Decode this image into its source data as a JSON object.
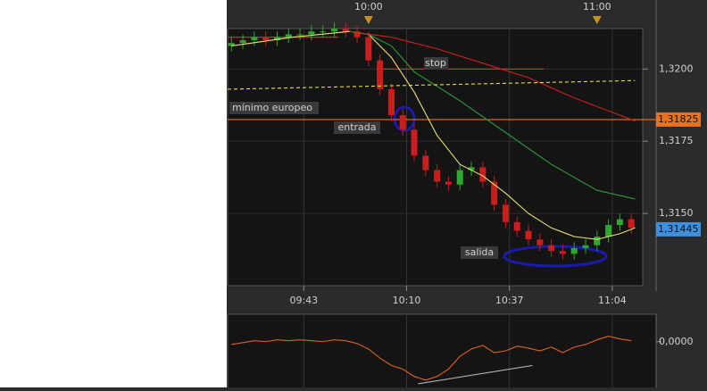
{
  "chart_data": {
    "type": "candlestick",
    "xlim": [
      "09:23",
      "11:12"
    ],
    "ylim": [
      1.3125,
      1.3214
    ],
    "xticks": [
      "09:43",
      "10:10",
      "10:37",
      "11:04"
    ],
    "top_xticks": [
      "10:00",
      "11:00"
    ],
    "yticks": [
      {
        "value": 1.32,
        "label": "1,3200"
      },
      {
        "value": 1.3175,
        "label": "1,3175"
      },
      {
        "value": 1.315,
        "label": "1,3150"
      }
    ],
    "grid": true,
    "up_color": "#2fa82f",
    "down_color": "#c81e1e",
    "x": [
      "09:24",
      "09:27",
      "09:30",
      "09:33",
      "09:36",
      "09:39",
      "09:42",
      "09:45",
      "09:48",
      "09:51",
      "09:54",
      "09:57",
      "10:00",
      "10:03",
      "10:06",
      "10:09",
      "10:12",
      "10:15",
      "10:18",
      "10:21",
      "10:24",
      "10:27",
      "10:30",
      "10:33",
      "10:36",
      "10:39",
      "10:42",
      "10:45",
      "10:48",
      "10:51",
      "10:54",
      "10:57",
      "11:00",
      "11:03",
      "11:06",
      "11:09"
    ],
    "open": [
      1.3208,
      1.3209,
      1.321,
      1.3211,
      1.321,
      1.3211,
      1.3212,
      1.3212,
      1.3213,
      1.3213,
      1.3214,
      1.3213,
      1.3211,
      1.3203,
      1.3193,
      1.3184,
      1.3179,
      1.317,
      1.3165,
      1.3161,
      1.316,
      1.3165,
      1.3166,
      1.3161,
      1.3153,
      1.3147,
      1.3144,
      1.3141,
      1.3139,
      1.3137,
      1.3136,
      1.3138,
      1.3139,
      1.3142,
      1.3146,
      1.3148
    ],
    "high": [
      1.3211,
      1.3212,
      1.3213,
      1.3213,
      1.3213,
      1.3214,
      1.3214,
      1.3215,
      1.3215,
      1.3216,
      1.3216,
      1.3215,
      1.3213,
      1.3205,
      1.3195,
      1.3186,
      1.3181,
      1.3172,
      1.3167,
      1.3163,
      1.3167,
      1.3168,
      1.3168,
      1.3163,
      1.3155,
      1.3149,
      1.3146,
      1.3143,
      1.3141,
      1.3139,
      1.314,
      1.3141,
      1.3144,
      1.3148,
      1.315,
      1.315
    ],
    "low": [
      1.3206,
      1.3207,
      1.3208,
      1.3208,
      1.3208,
      1.3209,
      1.321,
      1.321,
      1.3211,
      1.3211,
      1.3211,
      1.3209,
      1.3201,
      1.3191,
      1.3182,
      1.3177,
      1.3168,
      1.3163,
      1.3159,
      1.3158,
      1.3158,
      1.3163,
      1.3159,
      1.3151,
      1.3145,
      1.3142,
      1.3139,
      1.3137,
      1.3135,
      1.3134,
      1.3134,
      1.3136,
      1.3137,
      1.314,
      1.3144,
      1.3143
    ],
    "close": [
      1.3209,
      1.321,
      1.3211,
      1.321,
      1.3211,
      1.3212,
      1.3212,
      1.3213,
      1.3213,
      1.3214,
      1.3213,
      1.3211,
      1.3203,
      1.3193,
      1.3184,
      1.3179,
      1.317,
      1.3165,
      1.3161,
      1.316,
      1.3165,
      1.3166,
      1.3161,
      1.3153,
      1.3147,
      1.3144,
      1.3141,
      1.3139,
      1.3137,
      1.3136,
      1.3138,
      1.3139,
      1.3142,
      1.3146,
      1.3148,
      1.3145
    ],
    "lines": [
      {
        "color": "#e8e070",
        "dash": false,
        "x": [
          "09:24",
          "09:40",
          "09:55",
          "10:00",
          "10:06",
          "10:12",
          "10:18",
          "10:24",
          "10:30",
          "10:36",
          "10:42",
          "10:48",
          "10:54",
          "11:00",
          "11:06",
          "11:10"
        ],
        "values": [
          1.3208,
          1.3211,
          1.3213,
          1.3212,
          1.3204,
          1.3192,
          1.3177,
          1.3167,
          1.3163,
          1.3157,
          1.315,
          1.3145,
          1.3142,
          1.3141,
          1.3143,
          1.3145
        ]
      },
      {
        "color": "#2e9a3a",
        "dash": false,
        "x": [
          "09:55",
          "10:00",
          "10:06",
          "10:12",
          "10:24",
          "10:36",
          "10:48",
          "11:00",
          "11:10"
        ],
        "values": [
          1.3213,
          1.3212,
          1.3208,
          1.3199,
          1.3189,
          1.3178,
          1.3167,
          1.3158,
          1.3155
        ]
      },
      {
        "color": "#d02020",
        "dash": false,
        "x": [
          "09:55",
          "10:06",
          "10:18",
          "10:30",
          "10:42",
          "10:54",
          "11:04",
          "11:10"
        ],
        "values": [
          1.3213,
          1.3211,
          1.3207,
          1.3202,
          1.3197,
          1.319,
          1.3185,
          1.3182
        ]
      },
      {
        "color": "#e8e040",
        "dash": true,
        "x": [
          "09:23",
          "11:10"
        ],
        "values": [
          1.3193,
          1.3196
        ]
      }
    ],
    "hlines": [
      {
        "color": "#e03030",
        "value": 1.32,
        "x": [
          "10:02",
          "10:46"
        ]
      },
      {
        "color": "#e03030",
        "value": 1.3211,
        "x": [
          "09:23",
          "09:52"
        ]
      }
    ],
    "price_tags": [
      {
        "value": 1.31825,
        "label": "1,31825",
        "color": "#e8731c",
        "line": true
      },
      {
        "value": 1.31445,
        "label": "1,31445",
        "color": "#3d8fe0",
        "line": false
      }
    ],
    "annotations": [
      "stop",
      "mínimo europeo",
      "entrada",
      "salida"
    ],
    "oscillator": {
      "color": "#e0601c",
      "ylim": [
        -0.005,
        0.003
      ],
      "yticks": [
        {
          "value": 0,
          "label": "0,0000"
        }
      ],
      "values": [
        -0.0003,
        -0.0001,
        0.0001,
        0.0,
        0.0002,
        0.0001,
        0.0002,
        0.0001,
        0.0,
        0.0002,
        0.0001,
        -0.0002,
        -0.0008,
        -0.0018,
        -0.0026,
        -0.003,
        -0.0038,
        -0.0042,
        -0.0038,
        -0.003,
        -0.0016,
        -0.0008,
        -0.0004,
        -0.0012,
        -0.001,
        -0.0005,
        -0.0007,
        -0.001,
        -0.0006,
        -0.0012,
        -0.0006,
        -0.0003,
        0.0002,
        0.0006,
        0.0003,
        0.0001
      ],
      "divergence": {
        "color": "#b0b0b0",
        "x": [
          "10:13",
          "10:43"
        ],
        "values": [
          -0.0046,
          -0.0026
        ]
      }
    }
  }
}
